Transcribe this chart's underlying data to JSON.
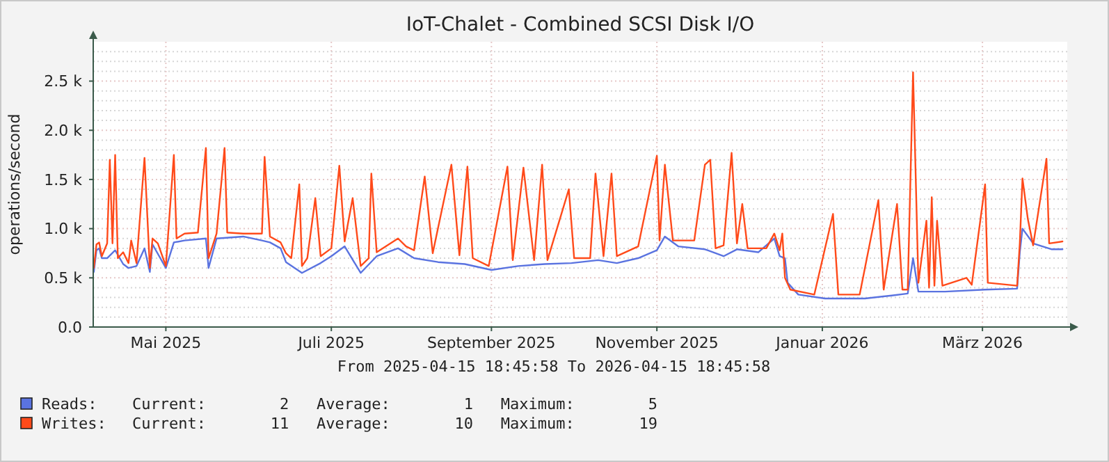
{
  "chart_data": {
    "type": "line",
    "title": "IoT-Chalet - Combined SCSI Disk I/O",
    "ylabel": "operations/second",
    "xlim": [
      "2025-04-15T18:45",
      "2026-04-15T18:45"
    ],
    "xticks": [
      {
        "value": "2025-05-13",
        "label": "Mai 2025"
      },
      {
        "value": "2025-07-14",
        "label": "Juli 2025"
      },
      {
        "value": "2025-09-12",
        "label": "September 2025"
      },
      {
        "value": "2025-11-13",
        "label": "November 2025"
      },
      {
        "value": "2026-01-14",
        "label": "Januar 2026"
      },
      {
        "value": "2026-03-15",
        "label": "März 2026"
      }
    ],
    "ylim": [
      0,
      2900
    ],
    "yticks": [
      {
        "value": 0,
        "label": "0.0"
      },
      {
        "value": 100,
        "label": null
      },
      {
        "value": 200,
        "label": null
      },
      {
        "value": 300,
        "label": null
      },
      {
        "value": 400,
        "label": null
      },
      {
        "value": 500,
        "label": "0.5 k"
      },
      {
        "value": 600,
        "label": null
      },
      {
        "value": 700,
        "label": null
      },
      {
        "value": 800,
        "label": null
      },
      {
        "value": 900,
        "label": null
      },
      {
        "value": 1000,
        "label": "1.0 k"
      },
      {
        "value": 1100,
        "label": null
      },
      {
        "value": 1200,
        "label": null
      },
      {
        "value": 1300,
        "label": null
      },
      {
        "value": 1400,
        "label": null
      },
      {
        "value": 1500,
        "label": "1.5 k"
      },
      {
        "value": 1600,
        "label": null
      },
      {
        "value": 1700,
        "label": null
      },
      {
        "value": 1800,
        "label": null
      },
      {
        "value": 1900,
        "label": null
      },
      {
        "value": 2000,
        "label": "2.0 k"
      },
      {
        "value": 2100,
        "label": null
      },
      {
        "value": 2200,
        "label": null
      },
      {
        "value": 2300,
        "label": null
      },
      {
        "value": 2400,
        "label": null
      },
      {
        "value": 2500,
        "label": "2.5 k"
      },
      {
        "value": 2600,
        "label": null
      },
      {
        "value": 2700,
        "label": null
      },
      {
        "value": 2800,
        "label": null
      }
    ],
    "grid": true,
    "legend": "bottom",
    "marker": "none",
    "line_style": "solid",
    "annotations": [
      "From 2025-04-15 18:45:58 To 2026-04-15 18:45:58",
      "Current:        2   Average:        1   Maximum:        5",
      "Current:       11   Average:       10   Maximum:       19"
    ],
    "series": [
      {
        "name": "Reads:",
        "color": "#5a73e0",
        "x": [
          "2025-04-16",
          "2025-04-17",
          "2025-04-18",
          "2025-04-19",
          "2025-04-21",
          "2025-04-24",
          "2025-04-27",
          "2025-04-29",
          "2025-05-02",
          "2025-05-05",
          "2025-05-07",
          "2025-05-08",
          "2025-05-13",
          "2025-05-16",
          "2025-05-20",
          "2025-05-28",
          "2025-05-29",
          "2025-06-01",
          "2025-06-11",
          "2025-06-18",
          "2025-06-21",
          "2025-06-25",
          "2025-06-27",
          "2025-07-03",
          "2025-07-10",
          "2025-07-14",
          "2025-07-19",
          "2025-07-25",
          "2025-07-31",
          "2025-08-08",
          "2025-08-14",
          "2025-08-23",
          "2025-09-02",
          "2025-09-12",
          "2025-09-22",
          "2025-10-02",
          "2025-10-12",
          "2025-10-22",
          "2025-10-29",
          "2025-11-06",
          "2025-11-13",
          "2025-11-16",
          "2025-11-21",
          "2025-12-01",
          "2025-12-08",
          "2025-12-13",
          "2025-12-21",
          "2025-12-27",
          "2025-12-29",
          "2025-12-31",
          "2026-01-01",
          "2026-01-05",
          "2026-01-15",
          "2026-01-30",
          "2026-02-09",
          "2026-02-15",
          "2026-02-17",
          "2026-02-19",
          "2026-03-01",
          "2026-03-16",
          "2026-03-28",
          "2026-03-29",
          "2026-03-30",
          "2026-04-03",
          "2026-04-10",
          "2026-04-14"
        ],
        "values": [
          560,
          780,
          800,
          700,
          700,
          780,
          640,
          600,
          620,
          800,
          560,
          840,
          600,
          860,
          880,
          900,
          600,
          900,
          920,
          880,
          860,
          800,
          660,
          550,
          650,
          720,
          820,
          550,
          720,
          800,
          700,
          660,
          640,
          580,
          620,
          640,
          650,
          680,
          650,
          700,
          780,
          920,
          820,
          790,
          720,
          790,
          760,
          900,
          720,
          700,
          450,
          330,
          290,
          290,
          320,
          340,
          700,
          360,
          360,
          380,
          390,
          760,
          1000,
          850,
          790,
          790
        ]
      },
      {
        "name": "Writes:",
        "color": "#ff4a1a",
        "x": [
          "2025-04-16",
          "2025-04-17",
          "2025-04-18",
          "2025-04-19",
          "2025-04-21",
          "2025-04-22",
          "2025-04-23",
          "2025-04-24",
          "2025-04-25",
          "2025-04-27",
          "2025-04-29",
          "2025-04-30",
          "2025-05-02",
          "2025-05-05",
          "2025-05-07",
          "2025-05-08",
          "2025-05-10",
          "2025-05-13",
          "2025-05-16",
          "2025-05-17",
          "2025-05-20",
          "2025-05-25",
          "2025-05-28",
          "2025-05-29",
          "2025-06-01",
          "2025-06-04",
          "2025-06-05",
          "2025-06-11",
          "2025-06-18",
          "2025-06-19",
          "2025-06-21",
          "2025-06-25",
          "2025-06-27",
          "2025-06-29",
          "2025-07-02",
          "2025-07-03",
          "2025-07-05",
          "2025-07-08",
          "2025-07-10",
          "2025-07-14",
          "2025-07-17",
          "2025-07-19",
          "2025-07-22",
          "2025-07-25",
          "2025-07-28",
          "2025-07-29",
          "2025-07-31",
          "2025-08-08",
          "2025-08-11",
          "2025-08-14",
          "2025-08-18",
          "2025-08-21",
          "2025-08-28",
          "2025-08-31",
          "2025-09-03",
          "2025-09-05",
          "2025-09-11",
          "2025-09-18",
          "2025-09-20",
          "2025-09-24",
          "2025-09-28",
          "2025-10-01",
          "2025-10-03",
          "2025-10-11",
          "2025-10-13",
          "2025-10-19",
          "2025-10-21",
          "2025-10-24",
          "2025-10-27",
          "2025-10-29",
          "2025-11-06",
          "2025-11-13",
          "2025-11-14",
          "2025-11-16",
          "2025-11-19",
          "2025-11-27",
          "2025-12-01",
          "2025-12-03",
          "2025-12-05",
          "2025-12-08",
          "2025-12-11",
          "2025-12-13",
          "2025-12-15",
          "2025-12-17",
          "2025-12-24",
          "2025-12-27",
          "2025-12-29",
          "2025-12-30",
          "2025-12-31",
          "2026-01-02",
          "2026-01-11",
          "2026-01-18",
          "2026-01-20",
          "2026-01-28",
          "2026-02-04",
          "2026-02-06",
          "2026-02-11",
          "2026-02-13",
          "2026-02-15",
          "2026-02-17",
          "2026-02-19",
          "2026-02-22",
          "2026-02-23",
          "2026-02-24",
          "2026-02-25",
          "2026-02-26",
          "2026-02-28",
          "2026-03-09",
          "2026-03-11",
          "2026-03-16",
          "2026-03-17",
          "2026-03-28",
          "2026-03-29",
          "2026-03-30",
          "2026-04-01",
          "2026-04-03",
          "2026-04-08",
          "2026-04-09",
          "2026-04-14"
        ],
        "values": [
          600,
          840,
          860,
          720,
          850,
          1700,
          850,
          1750,
          700,
          760,
          650,
          880,
          650,
          1720,
          600,
          900,
          850,
          620,
          1750,
          900,
          950,
          960,
          1820,
          700,
          950,
          1820,
          960,
          950,
          950,
          1730,
          920,
          860,
          750,
          700,
          1450,
          620,
          700,
          1310,
          720,
          800,
          1640,
          870,
          1310,
          620,
          700,
          1560,
          760,
          900,
          820,
          780,
          1530,
          750,
          1650,
          730,
          1630,
          700,
          620,
          1630,
          680,
          1620,
          680,
          1650,
          680,
          1400,
          700,
          700,
          1560,
          720,
          1560,
          720,
          820,
          1740,
          880,
          1650,
          880,
          880,
          1650,
          1700,
          800,
          830,
          1770,
          850,
          1250,
          800,
          800,
          950,
          780,
          950,
          500,
          380,
          330,
          1150,
          330,
          330,
          1290,
          380,
          1250,
          380,
          380,
          2590,
          450,
          1080,
          400,
          1320,
          420,
          1080,
          420,
          500,
          430,
          1450,
          450,
          420,
          850,
          1510,
          1100,
          830,
          1710,
          850,
          870
        ]
      }
    ]
  }
}
